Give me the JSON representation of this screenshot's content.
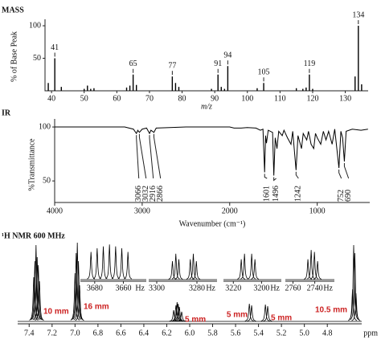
{
  "chart_data": [
    {
      "type": "stem",
      "title": "MASS",
      "ylabel": "% of Base Peak",
      "xlabel": "m/z",
      "x": [
        39,
        41,
        43,
        50,
        51,
        52,
        53,
        63,
        64,
        65,
        66,
        77,
        78,
        79,
        89,
        91,
        92,
        93,
        94,
        103,
        105,
        115,
        117,
        118,
        119,
        120,
        133,
        134,
        135
      ],
      "values": [
        12,
        50,
        6,
        3,
        8,
        3,
        4,
        5,
        8,
        25,
        9,
        22,
        12,
        6,
        3,
        25,
        6,
        3,
        38,
        4,
        12,
        4,
        3,
        5,
        25,
        3,
        22,
        100,
        10
      ],
      "annotations": [
        41,
        65,
        77,
        91,
        94,
        105,
        119,
        134
      ],
      "xlim": [
        38,
        137
      ],
      "xticks": [
        40,
        50,
        60,
        70,
        80,
        90,
        100,
        110,
        120,
        130
      ],
      "ylim": [
        0,
        105
      ],
      "yticks": [
        50,
        100
      ],
      "color": "#000000"
    },
    {
      "type": "line",
      "title": "IR",
      "ylabel": "%Transmittance",
      "xlabel": "Wavenumber (cm⁻¹)",
      "x": [
        4000,
        3200,
        3100,
        3066,
        3050,
        3032,
        3000,
        2950,
        2916,
        2900,
        2866,
        2840,
        2500,
        2000,
        1950,
        1870,
        1800,
        1700,
        1650,
        1620,
        1601,
        1590,
        1580,
        1560,
        1510,
        1496,
        1480,
        1460,
        1440,
        1400,
        1380,
        1340,
        1300,
        1280,
        1242,
        1220,
        1180,
        1160,
        1120,
        1100,
        1070,
        1040,
        1020,
        1000,
        960,
        930,
        900,
        870,
        830,
        800,
        752,
        730,
        710,
        690,
        670,
        600,
        500,
        420
      ],
      "values": [
        100,
        100,
        98,
        94,
        97,
        95,
        98,
        99,
        94,
        97,
        95,
        99,
        100,
        100,
        99,
        99,
        99.5,
        99,
        97,
        98,
        58,
        92,
        85,
        97,
        95,
        55,
        90,
        80,
        96,
        92,
        97,
        90,
        84,
        96,
        60,
        92,
        80,
        94,
        88,
        96,
        84,
        80,
        94,
        90,
        84,
        96,
        88,
        96,
        84,
        98,
        62,
        96,
        90,
        68,
        96,
        98,
        97,
        98
      ],
      "annotations": [
        3066,
        3032,
        2916,
        2866,
        1601,
        1496,
        1242,
        752,
        690
      ],
      "xlim": [
        4000,
        400
      ],
      "xticks": [
        4000,
        3000,
        2000,
        1000
      ],
      "ylim": [
        30,
        106
      ],
      "yticks": [
        50,
        100
      ],
      "color": "#000000"
    },
    {
      "type": "nmr",
      "title": "¹H NMR 600 MHz",
      "xlabel": "ppm",
      "x": [
        7.36,
        7.35,
        7.34,
        7.33,
        7.32,
        7.31,
        7.0,
        6.99,
        6.98,
        6.97,
        6.96,
        6.14,
        6.12,
        6.11,
        6.1,
        6.09,
        6.07,
        5.48,
        5.46,
        5.34,
        5.32,
        4.58,
        4.57,
        4.56,
        4.55
      ],
      "values": [
        55,
        75,
        95,
        80,
        70,
        50,
        60,
        85,
        98,
        75,
        45,
        14,
        20,
        24,
        22,
        18,
        12,
        22,
        20,
        21,
        19,
        40,
        95,
        85,
        35
      ],
      "xlim": [
        7.5,
        4.5
      ],
      "xticks": [
        7.4,
        7.2,
        {
          "value": 7,
          "label": "7.0"
        },
        6.8,
        6.6,
        6.4,
        6.2,
        {
          "value": 6,
          "label": "6.0"
        },
        5.8,
        5.6,
        5.4,
        5.2,
        {
          "value": 5,
          "label": "5.0"
        },
        4.8
      ],
      "ylim": [
        0,
        100
      ],
      "integrals": [
        "10 mm",
        "16 mm",
        "5 mm",
        "5 mm",
        "5 mm",
        "10.5 mm"
      ],
      "integral_color": "#cc2222",
      "color": "#000000",
      "insets": [
        {
          "unit": "Hz",
          "xlim": [
            3690,
            3644
          ],
          "xticks": [
            3680,
            3660
          ],
          "ylim": [
            0,
            100
          ],
          "x": [
            3682.6,
            3678.3,
            3674,
            3669.7,
            3665.4,
            3661.1,
            3656.8
          ],
          "values": [
            75,
            85,
            90,
            95,
            90,
            85,
            75
          ]
        },
        {
          "unit": "Hz",
          "xlim": [
            3304,
            3270
          ],
          "xticks": [
            3300,
            3280
          ],
          "ylim": [
            0,
            100
          ],
          "x": [
            3292.2,
            3290.5,
            3289,
            3283.3,
            3281.8,
            3280.3
          ],
          "values": [
            50,
            70,
            55,
            55,
            70,
            50
          ]
        },
        {
          "unit": "Hz",
          "xlim": [
            3227,
            3186
          ],
          "xticks": [
            3220,
            3200
          ],
          "ylim": [
            0,
            100
          ],
          "x": [
            3214.4,
            3212.1,
            3207,
            3204.7
          ],
          "values": [
            55,
            70,
            70,
            55
          ]
        },
        {
          "unit": "Hz",
          "xlim": [
            2767,
            2722
          ],
          "xticks": [
            2760,
            2740
          ],
          "ylim": [
            0,
            100
          ],
          "x": [
            2746.3,
            2743.3,
            2740.3,
            2737.4
          ],
          "values": [
            55,
            80,
            75,
            50
          ]
        }
      ]
    }
  ]
}
